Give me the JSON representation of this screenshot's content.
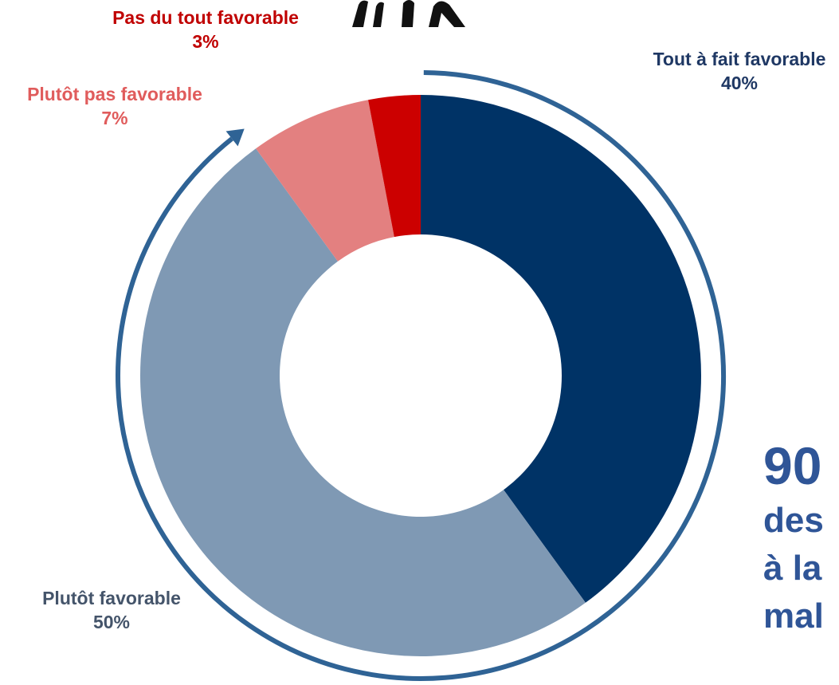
{
  "chart_data": {
    "type": "pie",
    "variant": "donut",
    "title": "",
    "slices": [
      {
        "label": "Tout à fait favorable",
        "value": 40,
        "value_label": "40%",
        "color": "#003366"
      },
      {
        "label": "Plutôt favorable",
        "value": 50,
        "value_label": "50%",
        "color": "#7f99b4"
      },
      {
        "label": "Plutôt pas favorable",
        "value": 7,
        "value_label": "7%",
        "color": "#e38080"
      },
      {
        "label": "Pas du tout favorable",
        "value": 3,
        "value_label": "3%",
        "color": "#cc0000"
      }
    ],
    "label_colors": {
      "Tout à fait favorable": "#1f3864",
      "Plutôt favorable": "#44546a",
      "Plutôt pas favorable": "#e05c5c",
      "Pas du tout favorable": "#c00000"
    },
    "annotation": {
      "arc_color": "#2f6395",
      "big_value": "90",
      "lines": [
        "des",
        "à la",
        "mal"
      ]
    },
    "icons": [
      "people-figures-icon"
    ]
  }
}
